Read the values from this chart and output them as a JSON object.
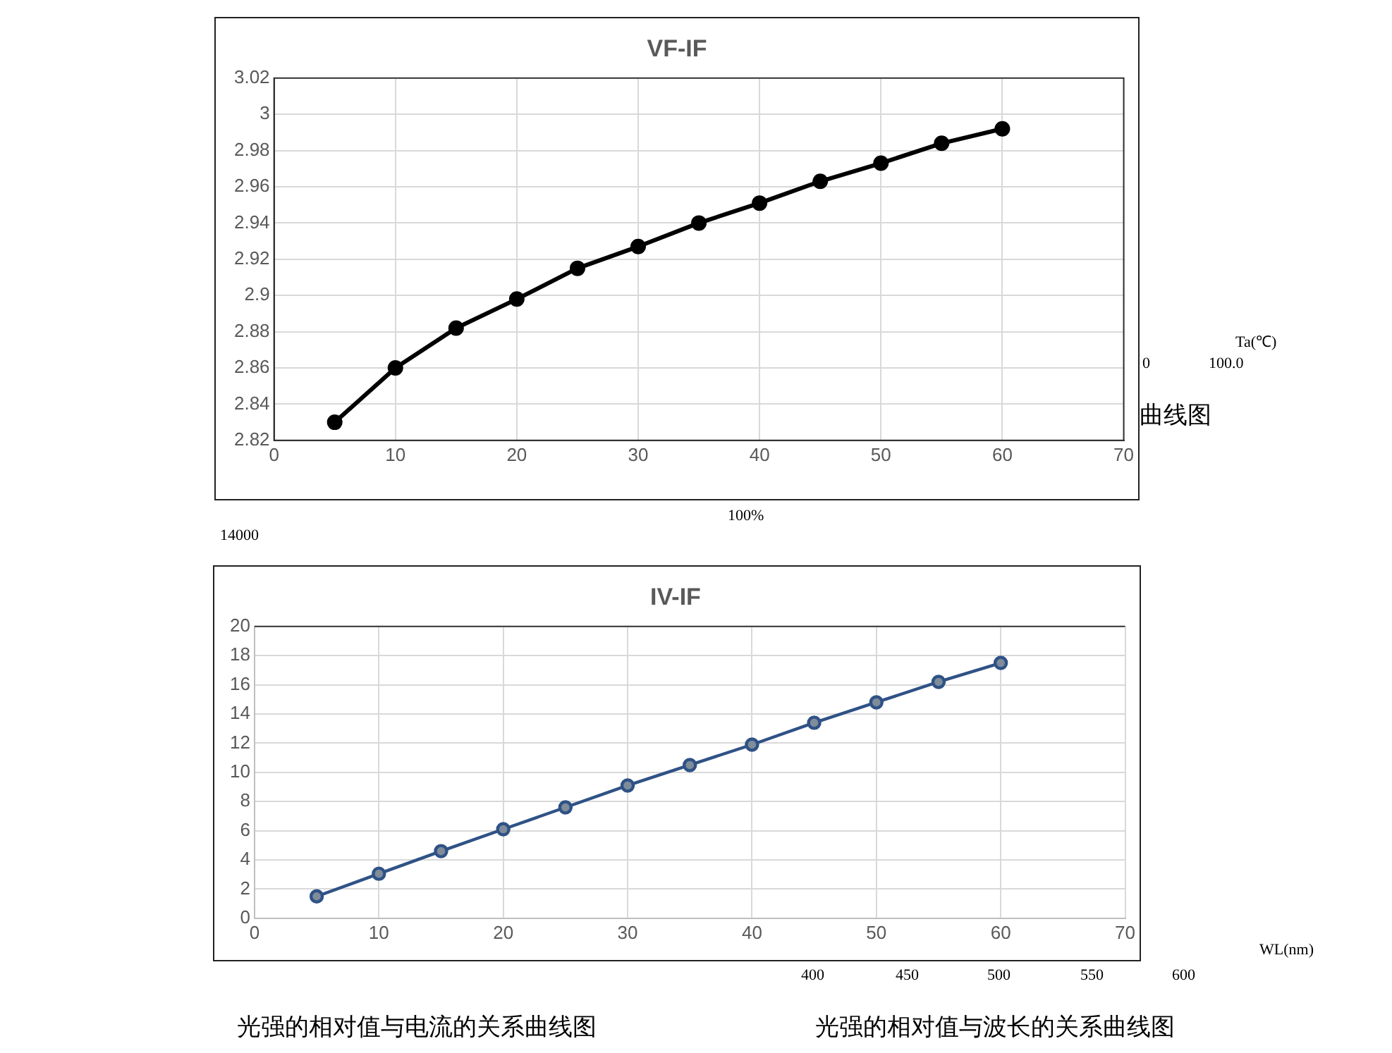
{
  "chart_data": [
    {
      "type": "line",
      "title": "VF-IF",
      "x": [
        5,
        10,
        15,
        20,
        25,
        30,
        35,
        40,
        45,
        50,
        55,
        60
      ],
      "series": [
        {
          "color": "#000000",
          "values": [
            2.83,
            2.86,
            2.882,
            2.898,
            2.915,
            2.927,
            2.94,
            2.951,
            2.963,
            2.973,
            2.984,
            2.992
          ]
        }
      ],
      "xlim": [
        0,
        70
      ],
      "xticks": [
        0,
        10,
        20,
        30,
        40,
        50,
        60,
        70
      ],
      "ylim": [
        2.82,
        3.02
      ],
      "yticks": [
        2.82,
        2.84,
        2.86,
        2.88,
        2.9,
        2.92,
        2.94,
        2.96,
        2.98,
        {
          "value": 3,
          "label": "3"
        },
        3.02
      ],
      "grid": true,
      "legend": false,
      "marker": "circle",
      "line_style": "solid",
      "annotations": [
        "Ta(℃)",
        "0",
        "100.0",
        "曲线图",
        "100%",
        "14000"
      ]
    },
    {
      "type": "line",
      "title": "IV-IF",
      "x": [
        5,
        10,
        15,
        20,
        25,
        30,
        35,
        40,
        45,
        50,
        55,
        60
      ],
      "series": [
        {
          "color": "#2f5286",
          "values": [
            1.5,
            3.05,
            4.6,
            6.1,
            7.6,
            9.1,
            10.5,
            11.9,
            13.4,
            14.8,
            16.2,
            17.5
          ]
        }
      ],
      "xlim": [
        0,
        70
      ],
      "xticks": [
        0,
        10,
        20,
        30,
        40,
        50,
        60,
        70
      ],
      "ylim": [
        0,
        20
      ],
      "yticks": [
        0,
        2,
        4,
        6,
        8,
        10,
        12,
        14,
        16,
        18,
        20
      ],
      "grid": true,
      "legend": false,
      "marker": "circle",
      "line_style": "solid",
      "annotations": [
        "WL(nm)",
        "400",
        "450",
        "500",
        "550",
        "600",
        "光强的相对值与电流的关系曲线图",
        "光强的相对值与波长的关系曲线图"
      ]
    }
  ]
}
